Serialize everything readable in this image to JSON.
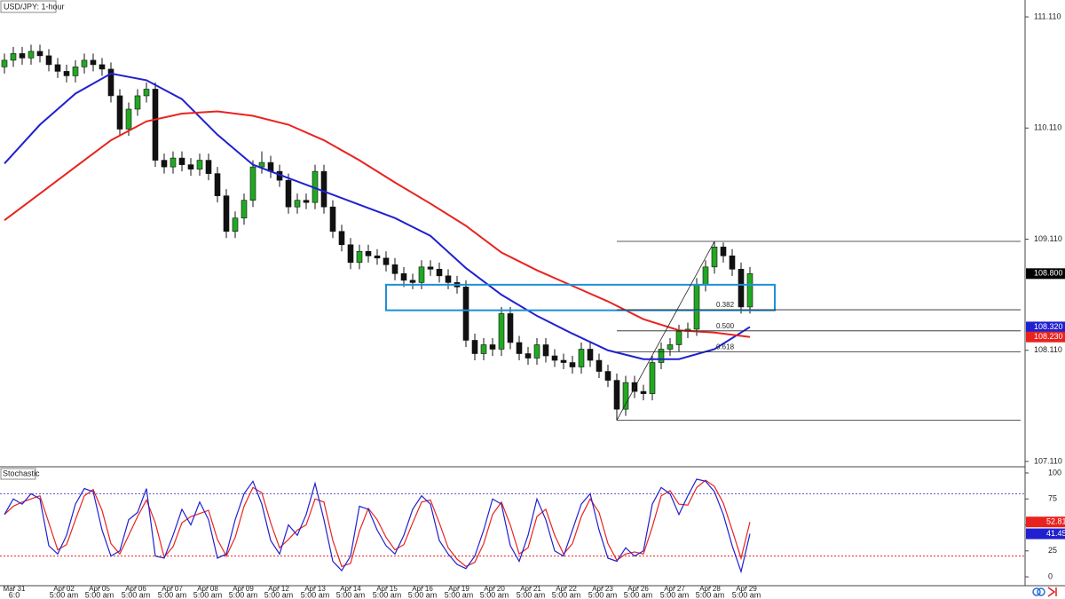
{
  "chart_data": {
    "type": "candlestick",
    "title": "USD/JPY: 1-hour",
    "up_color": "#22a822",
    "down_color": "#111111",
    "xlim": [
      -0.5,
      115
    ],
    "ylim": [
      107.07,
      111.262
    ],
    "xticks": [
      {
        "value": 1.1,
        "label": "Mar 31"
      },
      {
        "value": 6.7,
        "label": "Apr 02"
      },
      {
        "value": 10.7,
        "label": "Apr 05"
      },
      {
        "value": 14.8,
        "label": "Apr 06"
      },
      {
        "value": 18.9,
        "label": "Apr 07"
      },
      {
        "value": 22.9,
        "label": "Apr 08"
      },
      {
        "value": 26.9,
        "label": "Apr 09"
      },
      {
        "value": 30.9,
        "label": "Apr 12"
      },
      {
        "value": 35,
        "label": "Apr 13"
      },
      {
        "value": 39,
        "label": "Apr 14"
      },
      {
        "value": 43.1,
        "label": "Apr 15"
      },
      {
        "value": 47.1,
        "label": "Apr 16"
      },
      {
        "value": 51.2,
        "label": "Apr 19"
      },
      {
        "value": 55.2,
        "label": "Apr 20"
      },
      {
        "value": 59.3,
        "label": "Apr 21"
      },
      {
        "value": 63.3,
        "label": "Apr 22"
      },
      {
        "value": 67.4,
        "label": "Apr 23"
      },
      {
        "value": 71.4,
        "label": "Apr 26"
      },
      {
        "value": 75.5,
        "label": "Apr 27"
      },
      {
        "value": 79.5,
        "label": "Apr 28"
      },
      {
        "value": 83.6,
        "label": "Apr 29"
      }
    ],
    "xtick_sublabels": [
      "6:0",
      "5:00 am",
      "5:00 am",
      "5:00 am",
      "5:00 am",
      "5:00 am",
      "5:00 am",
      "5:00 am",
      "5:00 am",
      "5:00 am",
      "5:00 am",
      "5:00 am",
      "5:00 am",
      "5:00 am",
      "5:00 am",
      "5:00 am",
      "5:00 am",
      "5:00 am",
      "5:00 am",
      "5:00 am",
      "5:00 am"
    ],
    "yticks": [
      {
        "value": 111.11,
        "label": "111.110"
      },
      {
        "value": 110.11,
        "label": "110.110"
      },
      {
        "value": 109.11,
        "label": "109.110"
      },
      {
        "value": 108.11,
        "label": "108.110"
      },
      {
        "value": 107.11,
        "label": "107.110"
      }
    ],
    "candles": [
      [
        110.66,
        110.78,
        110.6,
        110.72
      ],
      [
        110.72,
        110.84,
        110.66,
        110.78
      ],
      [
        110.78,
        110.84,
        110.68,
        110.74
      ],
      [
        110.74,
        110.86,
        110.68,
        110.8
      ],
      [
        110.8,
        110.86,
        110.7,
        110.76
      ],
      [
        110.76,
        110.82,
        110.62,
        110.68
      ],
      [
        110.68,
        110.74,
        110.56,
        110.62
      ],
      [
        110.62,
        110.68,
        110.52,
        110.58
      ],
      [
        110.58,
        110.72,
        110.52,
        110.66
      ],
      [
        110.66,
        110.78,
        110.6,
        110.72
      ],
      [
        110.72,
        110.78,
        110.62,
        110.68
      ],
      [
        110.68,
        110.74,
        110.58,
        110.64
      ],
      [
        110.64,
        110.7,
        110.34,
        110.4
      ],
      [
        110.4,
        110.46,
        110.04,
        110.1
      ],
      [
        110.1,
        110.34,
        110.04,
        110.28
      ],
      [
        110.28,
        110.46,
        110.22,
        110.4
      ],
      [
        110.4,
        110.52,
        110.34,
        110.46
      ],
      [
        110.46,
        110.52,
        109.76,
        109.82
      ],
      [
        109.82,
        109.88,
        109.7,
        109.76
      ],
      [
        109.76,
        109.9,
        109.7,
        109.84
      ],
      [
        109.84,
        109.9,
        109.72,
        109.78
      ],
      [
        109.78,
        109.84,
        109.68,
        109.74
      ],
      [
        109.74,
        109.88,
        109.68,
        109.82
      ],
      [
        109.82,
        109.88,
        109.64,
        109.7
      ],
      [
        109.7,
        109.76,
        109.44,
        109.5
      ],
      [
        109.5,
        109.56,
        109.12,
        109.18
      ],
      [
        109.18,
        109.36,
        109.12,
        109.3
      ],
      [
        109.3,
        109.52,
        109.24,
        109.46
      ],
      [
        109.46,
        109.82,
        109.4,
        109.76
      ],
      [
        109.76,
        109.9,
        109.7,
        109.8
      ],
      [
        109.8,
        109.86,
        109.66,
        109.72
      ],
      [
        109.72,
        109.78,
        109.58,
        109.64
      ],
      [
        109.64,
        109.7,
        109.34,
        109.4
      ],
      [
        109.4,
        109.52,
        109.34,
        109.46
      ],
      [
        109.46,
        109.52,
        109.38,
        109.44
      ],
      [
        109.44,
        109.78,
        109.38,
        109.72
      ],
      [
        109.72,
        109.78,
        109.34,
        109.4
      ],
      [
        109.4,
        109.46,
        109.12,
        109.18
      ],
      [
        109.18,
        109.24,
        109.0,
        109.06
      ],
      [
        109.06,
        109.12,
        108.84,
        108.9
      ],
      [
        108.9,
        109.06,
        108.84,
        109.0
      ],
      [
        109.0,
        109.06,
        108.9,
        108.96
      ],
      [
        108.96,
        109.02,
        108.88,
        108.94
      ],
      [
        108.94,
        109.0,
        108.82,
        108.88
      ],
      [
        108.88,
        108.94,
        108.74,
        108.8
      ],
      [
        108.8,
        108.86,
        108.68,
        108.74
      ],
      [
        108.74,
        108.8,
        108.66,
        108.72
      ],
      [
        108.72,
        108.92,
        108.66,
        108.86
      ],
      [
        108.86,
        108.92,
        108.78,
        108.84
      ],
      [
        108.84,
        108.9,
        108.72,
        108.78
      ],
      [
        108.78,
        108.84,
        108.66,
        108.72
      ],
      [
        108.72,
        108.78,
        108.62,
        108.68
      ],
      [
        108.68,
        108.74,
        108.14,
        108.2
      ],
      [
        108.2,
        108.26,
        108.02,
        108.08
      ],
      [
        108.08,
        108.22,
        108.02,
        108.16
      ],
      [
        108.16,
        108.22,
        108.06,
        108.12
      ],
      [
        108.12,
        108.5,
        108.06,
        108.44
      ],
      [
        108.44,
        108.5,
        108.12,
        108.18
      ],
      [
        108.18,
        108.24,
        108.02,
        108.08
      ],
      [
        108.08,
        108.14,
        107.98,
        108.04
      ],
      [
        108.04,
        108.22,
        107.98,
        108.16
      ],
      [
        108.16,
        108.22,
        108.0,
        108.06
      ],
      [
        108.06,
        108.12,
        107.96,
        108.02
      ],
      [
        108.02,
        108.08,
        107.94,
        108.0
      ],
      [
        108.0,
        108.06,
        107.9,
        107.96
      ],
      [
        107.96,
        108.18,
        107.9,
        108.12
      ],
      [
        108.12,
        108.18,
        107.96,
        108.02
      ],
      [
        108.02,
        108.08,
        107.86,
        107.92
      ],
      [
        107.92,
        107.98,
        107.78,
        107.84
      ],
      [
        107.84,
        107.9,
        107.48,
        107.58
      ],
      [
        107.58,
        107.88,
        107.52,
        107.82
      ],
      [
        107.82,
        107.88,
        107.68,
        107.74
      ],
      [
        107.74,
        107.8,
        107.66,
        107.72
      ],
      [
        107.72,
        108.06,
        107.66,
        108.0
      ],
      [
        108.0,
        108.18,
        107.94,
        108.12
      ],
      [
        108.12,
        108.22,
        108.06,
        108.16
      ],
      [
        108.16,
        108.34,
        108.1,
        108.28
      ],
      [
        108.28,
        108.36,
        108.22,
        108.3
      ],
      [
        108.3,
        108.76,
        108.24,
        108.7
      ],
      [
        108.7,
        108.92,
        108.64,
        108.86
      ],
      [
        108.86,
        109.09,
        108.8,
        109.04
      ],
      [
        109.04,
        109.08,
        108.9,
        108.96
      ],
      [
        108.96,
        109.02,
        108.78,
        108.84
      ],
      [
        108.84,
        108.9,
        108.44,
        108.5
      ],
      [
        108.5,
        108.86,
        108.44,
        108.8
      ]
    ],
    "moving_averages": [
      {
        "color": "#2020d0",
        "x": [
          0,
          4,
          8,
          12,
          16,
          20,
          24,
          28,
          32,
          36,
          40,
          44,
          48,
          52,
          56,
          60,
          64,
          68,
          72,
          76,
          80,
          84
        ],
        "values": [
          109.79,
          110.14,
          110.42,
          110.6,
          110.54,
          110.37,
          110.05,
          109.78,
          109.66,
          109.54,
          109.42,
          109.3,
          109.14,
          108.85,
          108.61,
          108.42,
          108.26,
          108.11,
          108.03,
          108.03,
          108.12,
          108.32
        ]
      },
      {
        "color": "#e8231f",
        "x": [
          0,
          4,
          8,
          12,
          16,
          20,
          24,
          28,
          32,
          36,
          40,
          44,
          48,
          52,
          56,
          60,
          64,
          68,
          72,
          76,
          80,
          84
        ],
        "values": [
          109.28,
          109.52,
          109.76,
          110.0,
          110.17,
          110.24,
          110.26,
          110.22,
          110.14,
          110.0,
          109.82,
          109.62,
          109.43,
          109.23,
          108.99,
          108.83,
          108.69,
          108.55,
          108.39,
          108.29,
          108.27,
          108.23
        ]
      }
    ],
    "zone": {
      "x": [
        43,
        86.8
      ],
      "y": [
        108.47,
        108.7
      ],
      "color": "#1e8fd6"
    },
    "trend_line": {
      "x": [
        69,
        80
      ],
      "y": [
        107.48,
        109.09
      ]
    },
    "fib": {
      "levels": [
        0.382,
        {
          "value": 0.5,
          "label": "0.500"
        },
        0.618
      ]
    },
    "price_tags": [
      {
        "value": 108.8,
        "label": "108.800",
        "color": "#000000"
      },
      {
        "value": 108.32,
        "label": "108.320",
        "color": "#2020d0"
      },
      {
        "value": 108.23,
        "label": "108.230",
        "color": "#e8231f"
      }
    ],
    "indicator": {
      "type": "line",
      "title": "Stochastic",
      "ylim": [
        -8.5,
        105.1
      ],
      "yticks": [
        100,
        75,
        50,
        25,
        0
      ],
      "levels": [
        {
          "value": 80,
          "color": "#5a4fcf"
        },
        {
          "value": 20,
          "color": "#e8231f"
        }
      ],
      "series": [
        {
          "color": "#e8231f",
          "values": [
            60,
            68,
            72,
            75,
            78,
            52,
            26,
            31,
            55,
            78,
            84,
            64,
            32,
            22,
            40,
            58,
            74,
            52,
            19,
            29,
            52,
            58,
            61,
            64,
            36,
            20,
            38,
            68,
            86,
            81,
            52,
            28,
            36,
            45,
            50,
            75,
            72,
            35,
            10,
            13,
            44,
            66,
            55,
            38,
            26,
            31,
            52,
            72,
            74,
            52,
            28,
            17,
            10,
            14,
            32,
            60,
            72,
            50,
            22,
            28,
            58,
            65,
            40,
            22,
            32,
            58,
            75,
            62,
            32,
            16,
            22,
            24,
            22,
            48,
            78,
            83,
            70,
            69,
            86,
            93,
            87,
            71,
            45,
            18,
            52.81
          ]
        },
        {
          "color": "#2020d0",
          "values": [
            60,
            75,
            70,
            80,
            75,
            30,
            22,
            40,
            70,
            85,
            82,
            45,
            20,
            25,
            55,
            62,
            85,
            20,
            18,
            40,
            65,
            50,
            72,
            55,
            18,
            22,
            55,
            80,
            92,
            70,
            35,
            22,
            50,
            40,
            60,
            90,
            55,
            15,
            6,
            20,
            68,
            65,
            45,
            30,
            22,
            40,
            65,
            78,
            70,
            35,
            22,
            12,
            8,
            20,
            45,
            75,
            70,
            30,
            15,
            40,
            75,
            55,
            25,
            20,
            45,
            70,
            80,
            45,
            18,
            15,
            28,
            20,
            25,
            70,
            86,
            80,
            60,
            78,
            94,
            92,
            82,
            60,
            30,
            5,
            41.45
          ]
        }
      ]
    }
  }
}
